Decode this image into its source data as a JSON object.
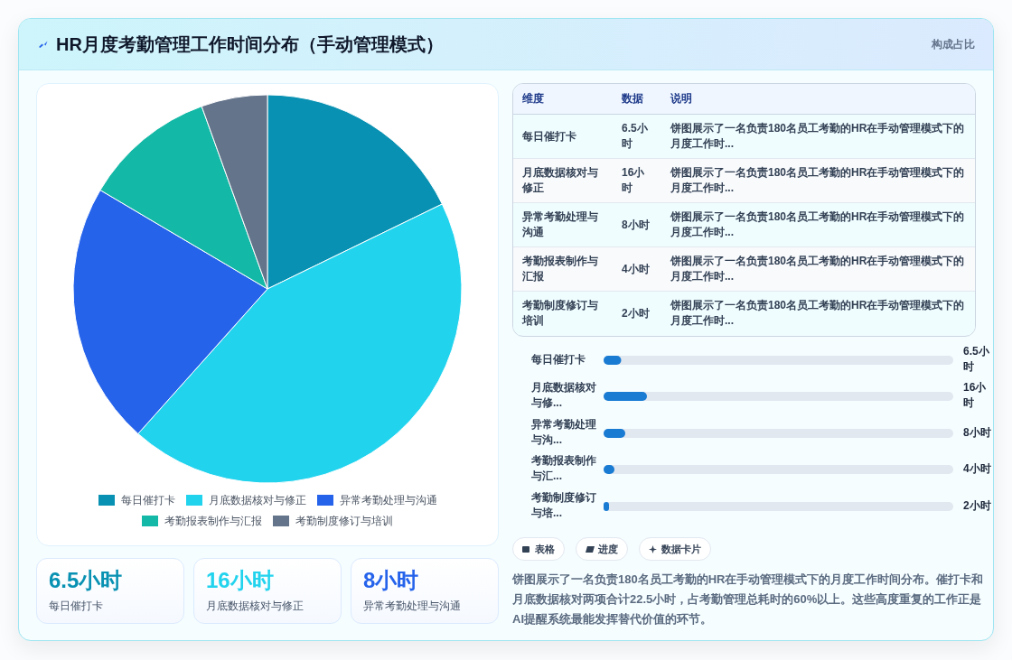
{
  "chart_data": [
    {
      "type": "other",
      "title": "HR月度考勤管理工作时间分布（手动管理模式）",
      "annotations": [
        "构成占比"
      ]
    },
    {
      "type": "pie",
      "categories": [
        "每日催打卡",
        "月底数据核对与修正",
        "异常考勤处理与沟通",
        "考勤报表制作与汇报",
        "考勤制度修订与培训"
      ],
      "values": [
        17.8,
        43.8,
        21.9,
        11.0,
        5.5
      ],
      "colors": [
        "#0891b2",
        "#22d3ee",
        "#2563eb",
        "#14b8a6",
        "#64748b"
      ],
      "legend": "bottom"
    },
    {
      "type": "other",
      "categories": [
        "每日催打卡",
        "月底数据核对与修正",
        "异常考勤处理与沟通"
      ],
      "value_labels": [
        "6.5小时",
        "16小时",
        "8小时"
      ]
    },
    {
      "type": "other",
      "categories": [
        "每日催打卡",
        "月底数据核对与修正",
        "异常考勤处理与沟通",
        "考勤报表制作与汇报",
        "考勤制度修订与培训"
      ],
      "value_labels": [
        "6.5小时",
        "16小时",
        "8小时",
        "4小时",
        "2小时"
      ],
      "annotations": [
        "维度",
        "数据",
        "说明",
        "饼图展示了一名负责180名员工考勤的HR在手动管理模式下的月度工作时...",
        "饼图展示了一名负责180名员工考勤的HR在手动管理模式下的月度工作时...",
        "饼图展示了一名负责180名员工考勤的HR在手动管理模式下的月度工作时...",
        "饼图展示了一名负责180名员工考勤的HR在手动管理模式下的月度工作时...",
        "饼图展示了一名负责180名员工考勤的HR在手动管理模式下的月度工作时..."
      ]
    },
    {
      "type": "bar",
      "orientation": "horizontal",
      "categories": [
        "每日催打卡",
        "月底数据核对与修...",
        "异常考勤处理与沟...",
        "考勤报表制作与汇...",
        "考勤制度修订与培..."
      ],
      "values": [
        6.5,
        16,
        8,
        4,
        2
      ],
      "value_labels": [
        "6.5小时",
        "16小时",
        "8小时",
        "4小时",
        "2小时"
      ],
      "xlim": [
        0,
        129
      ],
      "color": "#1a7bd3"
    },
    {
      "type": "other",
      "annotations": [
        "表格",
        "进度",
        "数据卡片",
        "饼图展示了一名负责180名员工考勤的HR在手动管理模式下的月度工作时间分布。催打卡和月底数据核对两项合计22.5小时，占考勤管理总耗时的60%以上。这些高度重复的工作正是AI提醒系统最能发挥替代价值的环节。"
      ]
    }
  ]
}
